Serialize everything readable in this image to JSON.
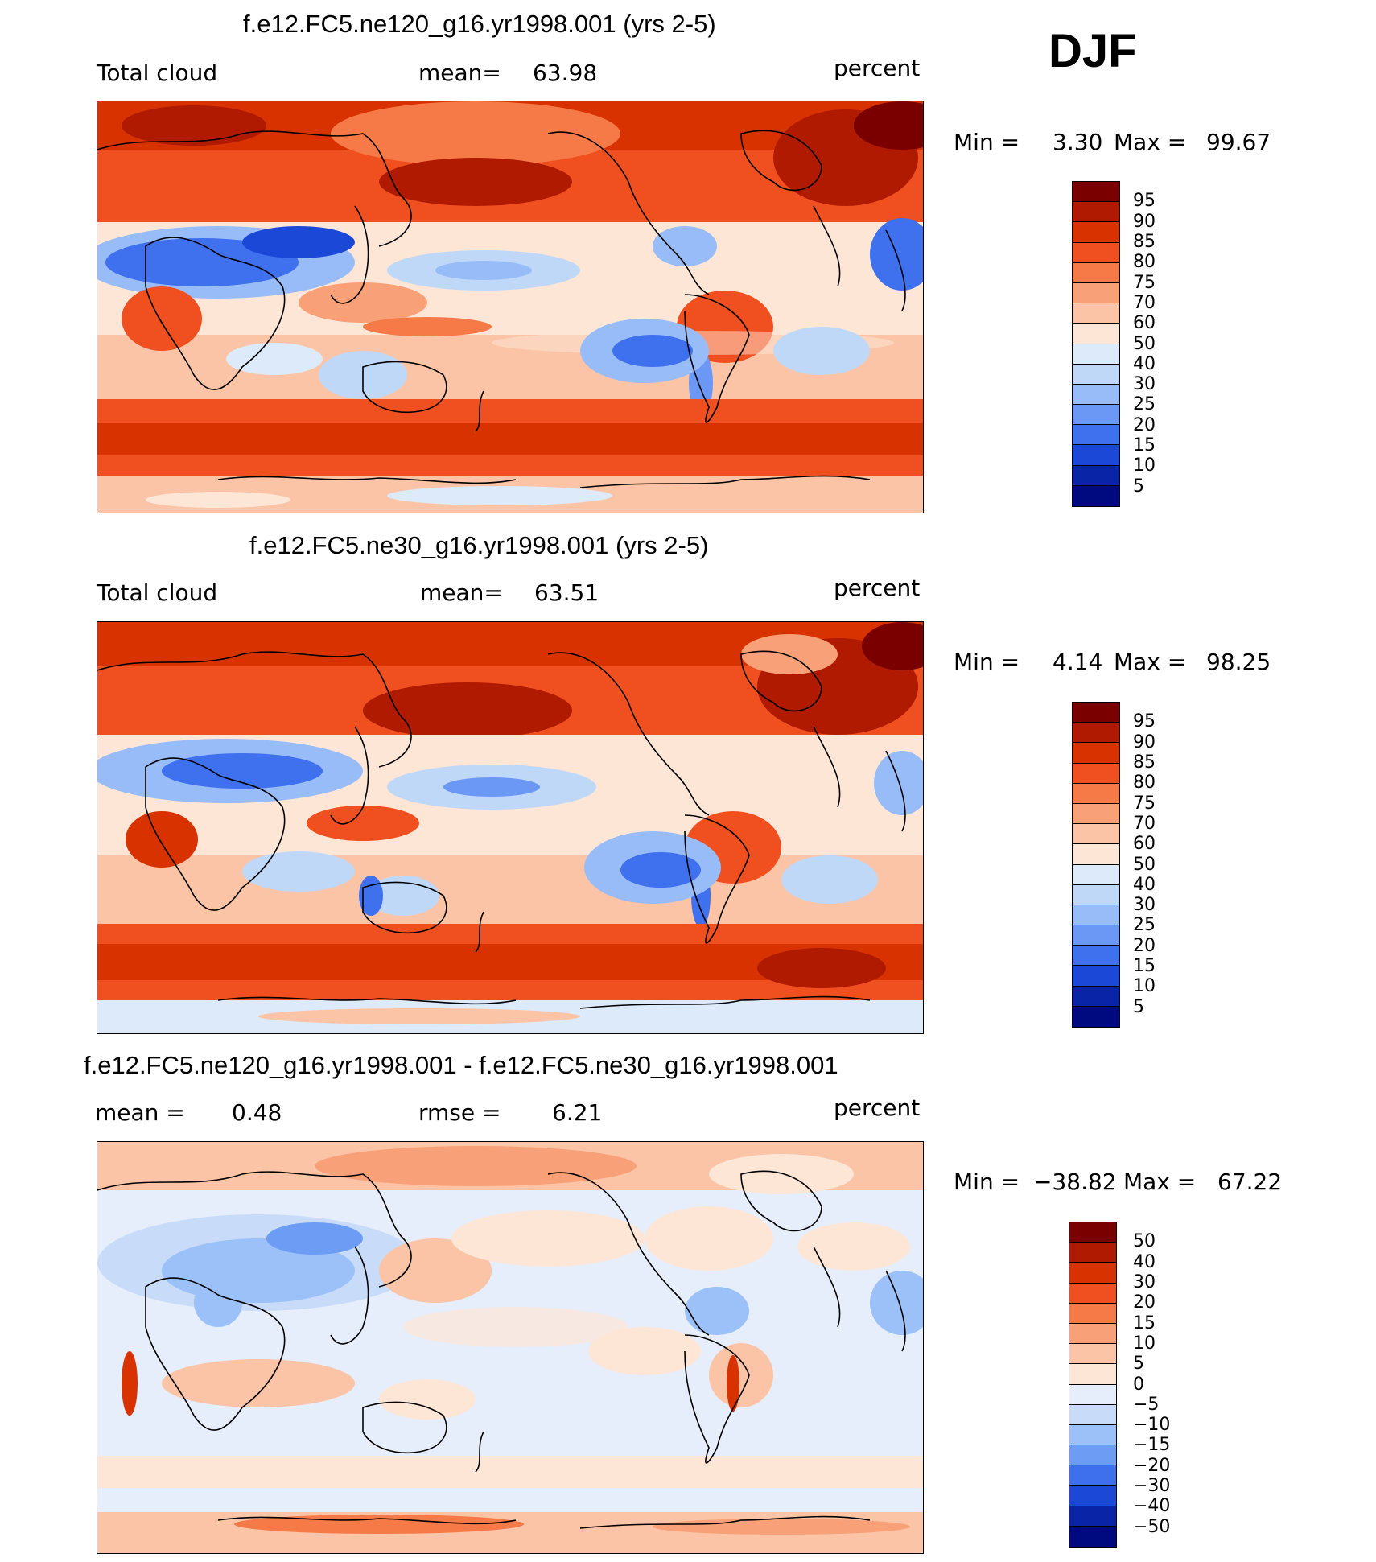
{
  "season": "DJF",
  "panels": [
    {
      "title": "f.e12.FC5.ne120_g16.yr1998.001 (yrs 2-5)",
      "left_label": "Total cloud",
      "stat1_label": "mean=",
      "stat1_value": "63.98",
      "units": "percent",
      "min_text": "Min =",
      "min_value": "3.30",
      "max_text": "Max =",
      "max_value": "99.67"
    },
    {
      "title": "f.e12.FC5.ne30_g16.yr1998.001 (yrs 2-5)",
      "left_label": "Total cloud",
      "stat1_label": "mean=",
      "stat1_value": "63.51",
      "units": "percent",
      "min_text": "Min =",
      "min_value": "4.14",
      "max_text": "Max =",
      "max_value": "98.25"
    },
    {
      "title": "f.e12.FC5.ne120_g16.yr1998.001 - f.e12.FC5.ne30_g16.yr1998.001",
      "left_label": "mean =",
      "left_value": "0.48",
      "stat1_label": "rmse =",
      "stat1_value": "6.21",
      "units": "percent",
      "min_text": "Min =",
      "min_value": "−38.82",
      "max_text": "Max =",
      "max_value": "67.22"
    }
  ],
  "colorbars": {
    "cloud": {
      "levels": [
        "95",
        "90",
        "85",
        "80",
        "75",
        "70",
        "60",
        "50",
        "40",
        "30",
        "25",
        "20",
        "15",
        "10",
        "5"
      ],
      "colors": [
        "#7a0000",
        "#b01a00",
        "#d83200",
        "#f05020",
        "#f57a48",
        "#f8a078",
        "#fbc4a6",
        "#fde6d6",
        "#dceaf9",
        "#c0d8f8",
        "#98bcf8",
        "#6a98f4",
        "#3f70ee",
        "#1c48d8",
        "#0a24a8",
        "#000a80"
      ]
    },
    "diff": {
      "levels": [
        "50",
        "40",
        "30",
        "20",
        "15",
        "10",
        "5",
        "0",
        "−5",
        "−10",
        "−15",
        "−20",
        "−30",
        "−40",
        "−50"
      ],
      "colors": [
        "#7a0000",
        "#b01a00",
        "#d83200",
        "#f05020",
        "#f57a48",
        "#f8a078",
        "#fbc4a6",
        "#fde6d6",
        "#e6eefb",
        "#c8dcfa",
        "#9cc0f8",
        "#6c9cf4",
        "#3e70ee",
        "#1c48d8",
        "#0a24a8",
        "#000a80"
      ]
    }
  }
}
